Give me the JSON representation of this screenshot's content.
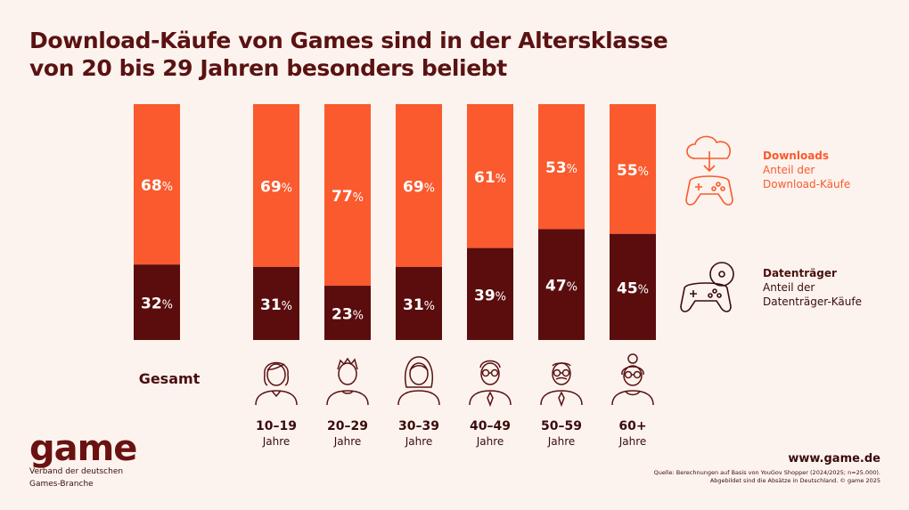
{
  "title_lines": [
    "Download-Käufe von Games sind in der Altersklasse",
    "von 20 bis 29 Jahren besonders beliebt"
  ],
  "colors": {
    "downloads": "#fa5a2d",
    "datentraeger": "#5b0d0d",
    "background": "#fcf3ee"
  },
  "chart_data": {
    "type": "bar",
    "stacked": true,
    "categories": [
      "Gesamt",
      "10-19 Jahre",
      "20-29 Jahre",
      "30-39 Jahre",
      "40-49 Jahre",
      "50-59 Jahre",
      "60+ Jahre"
    ],
    "series": [
      {
        "name": "Downloads",
        "values": [
          68,
          69,
          77,
          69,
          61,
          53,
          55
        ]
      },
      {
        "name": "Datenträger",
        "values": [
          32,
          31,
          23,
          31,
          39,
          47,
          45
        ]
      }
    ],
    "value_suffix": "%",
    "ylim": [
      0,
      100
    ]
  },
  "categories_display": {
    "total": "Gesamt",
    "groups": [
      {
        "range": "10–19",
        "unit": "Jahre",
        "icon": "teen-girl-icon"
      },
      {
        "range": "20–29",
        "unit": "Jahre",
        "icon": "young-man-icon"
      },
      {
        "range": "30–39",
        "unit": "Jahre",
        "icon": "woman-icon"
      },
      {
        "range": "40–49",
        "unit": "Jahre",
        "icon": "man-with-glasses-icon"
      },
      {
        "range": "50–59",
        "unit": "Jahre",
        "icon": "older-man-icon"
      },
      {
        "range": "60+",
        "unit": "Jahre",
        "icon": "senior-woman-icon"
      }
    ]
  },
  "legend": {
    "downloads": {
      "title": "Downloads",
      "subtitle_lines": [
        "Anteil der",
        "Download-Käufe"
      ],
      "icon": "cloud-download-controller-icon"
    },
    "datentraeger": {
      "title": "Datenträger",
      "subtitle_lines": [
        "Anteil der",
        "Datenträger-Käufe"
      ],
      "icon": "disc-controller-icon"
    }
  },
  "footer": {
    "logo_word": "game",
    "logo_tagline_lines": [
      "Verband der deutschen",
      "Games-Branche"
    ],
    "website": "www.game.de",
    "source_lines": [
      "Quelle: Berechnungen auf Basis von YouGov Shopper (2024/2025; n=25.000).",
      "Abgebildet sind die Absätze in Deutschland. © game 2025"
    ]
  }
}
